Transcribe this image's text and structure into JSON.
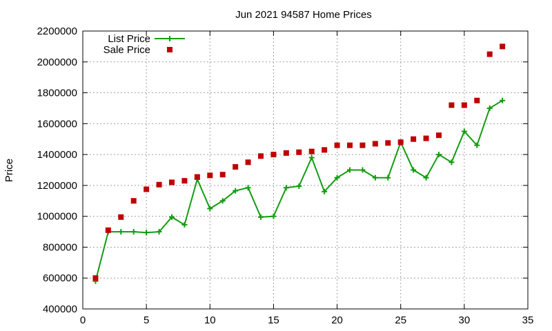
{
  "chart_data": {
    "type": "line",
    "title": "Jun 2021 94587 Home Prices",
    "xlabel": "",
    "ylabel": "Price",
    "xlim": [
      0,
      35
    ],
    "ylim": [
      400000,
      2200000
    ],
    "x_ticks": [
      0,
      5,
      10,
      15,
      20,
      25,
      30,
      35
    ],
    "y_ticks": [
      400000,
      600000,
      800000,
      1000000,
      1200000,
      1400000,
      1600000,
      1800000,
      2000000,
      2200000
    ],
    "x_tick_labels": [
      "0",
      "5",
      "10",
      "15",
      "20",
      "25",
      "30",
      "35"
    ],
    "y_tick_labels": [
      "400000",
      "600000",
      "800000",
      "1000000",
      "1200000",
      "1400000",
      "1600000",
      "1800000",
      "2000000",
      "2200000"
    ],
    "grid": true,
    "legend": "top-left",
    "x": [
      1,
      2,
      3,
      4,
      5,
      6,
      7,
      8,
      9,
      10,
      11,
      12,
      13,
      14,
      15,
      16,
      17,
      18,
      19,
      20,
      21,
      22,
      23,
      24,
      25,
      26,
      27,
      28,
      29,
      30,
      31,
      32,
      33
    ],
    "series": [
      {
        "name": "List Price",
        "style": "line-with-plus-markers",
        "color": "#109d10",
        "values": [
          580000,
          900000,
          900000,
          900000,
          895000,
          900000,
          995000,
          945000,
          1240000,
          1050000,
          1100000,
          1165000,
          1185000,
          995000,
          1000000,
          1185000,
          1195000,
          1380000,
          1160000,
          1250000,
          1300000,
          1300000,
          1250000,
          1250000,
          1480000,
          1300000,
          1250000,
          1400000,
          1350000,
          1550000,
          1460000,
          1700000,
          1750000
        ]
      },
      {
        "name": "Sale Price",
        "style": "square-markers",
        "color": "#c00000",
        "values": [
          600000,
          910000,
          995000,
          1100000,
          1175000,
          1205000,
          1220000,
          1230000,
          1255000,
          1265000,
          1270000,
          1320000,
          1350000,
          1390000,
          1400000,
          1410000,
          1415000,
          1420000,
          1430000,
          1460000,
          1460000,
          1460000,
          1470000,
          1475000,
          1480000,
          1500000,
          1505000,
          1525000,
          1720000,
          1720000,
          1750000,
          2050000,
          2100000
        ]
      }
    ]
  }
}
